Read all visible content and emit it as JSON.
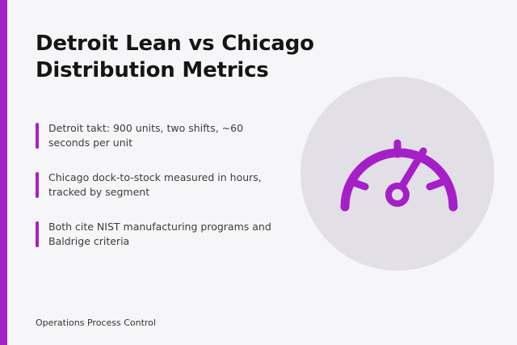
{
  "title": "Detroit Lean vs Chicago Distribution Metrics",
  "bullets": [
    {
      "text": "Detroit takt: 900 units, two shifts, ~60 seconds per unit"
    },
    {
      "text": "Chicago dock-to-stock measured in hours, tracked by segment"
    },
    {
      "text": "Both cite NIST manufacturing programs and Baldrige criteria"
    }
  ],
  "footer": "Operations Process Control",
  "illustration": {
    "icon": "speedometer-icon"
  },
  "colors": {
    "accent": "#a51fc8",
    "background": "#f6f6f8",
    "circle": "#e2dfe6",
    "title": "#151515",
    "body_text": "#3c3c3c"
  }
}
